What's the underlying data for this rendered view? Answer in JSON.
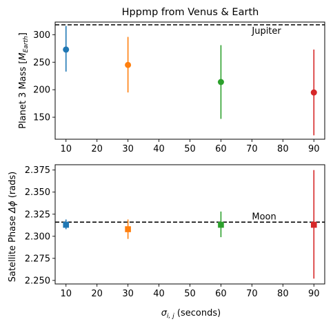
{
  "chart_data": [
    {
      "type": "scatter",
      "title": "Hppmp from Venus & Earth",
      "xlabel": "",
      "ylabel": "Planet 3 Mass [",
      "ylabel_sym": "M",
      "ylabel_sub": "Earth",
      "ylabel_end": "]",
      "xlim": [
        6.5,
        93.5
      ],
      "ylim": [
        110,
        323
      ],
      "xticks": [
        10,
        20,
        30,
        40,
        50,
        60,
        70,
        80,
        90
      ],
      "yticks": [
        150,
        200,
        250,
        300
      ],
      "marker": "circle",
      "series": [
        {
          "x": 10,
          "y": 273,
          "yerr_low": 233,
          "yerr_high": 316,
          "color": "#1f77b4"
        },
        {
          "x": 30,
          "y": 245,
          "yerr_low": 195,
          "yerr_high": 296,
          "color": "#ff7f0e"
        },
        {
          "x": 60,
          "y": 214,
          "yerr_low": 147,
          "yerr_high": 281,
          "color": "#2ca02c"
        },
        {
          "x": 90,
          "y": 195,
          "yerr_low": 117,
          "yerr_high": 273,
          "color": "#d62728"
        }
      ],
      "reference_line": {
        "value": 318,
        "label": "Jupiter",
        "label_x": 70,
        "style": "dashed",
        "color": "#000000"
      }
    },
    {
      "type": "scatter",
      "title": "",
      "xlabel_sym": "σ",
      "xlabel_sub": "i, j",
      "xlabel_end": " (seconds)",
      "ylabel": "Satellite Phase ",
      "ylabel_sym": "Δϕ",
      "ylabel_end": " (rads)",
      "xlim": [
        6.5,
        93.5
      ],
      "ylim": [
        2.246,
        2.381
      ],
      "xticks": [
        10,
        20,
        30,
        40,
        50,
        60,
        70,
        80,
        90
      ],
      "yticks": [
        "2.250",
        "2.275",
        "2.300",
        "2.325",
        "2.350",
        "2.375"
      ],
      "marker": "square",
      "series": [
        {
          "x": 10,
          "y": 2.313,
          "yerr_low": 2.308,
          "yerr_high": 2.319,
          "color": "#1f77b4"
        },
        {
          "x": 30,
          "y": 2.308,
          "yerr_low": 2.297,
          "yerr_high": 2.319,
          "color": "#ff7f0e"
        },
        {
          "x": 60,
          "y": 2.313,
          "yerr_low": 2.299,
          "yerr_high": 2.328,
          "color": "#2ca02c"
        },
        {
          "x": 90,
          "y": 2.313,
          "yerr_low": 2.252,
          "yerr_high": 2.375,
          "color": "#d62728"
        }
      ],
      "reference_line": {
        "value": 2.316,
        "label": "Moon",
        "label_x": 70,
        "style": "dashed",
        "color": "#000000"
      }
    }
  ]
}
